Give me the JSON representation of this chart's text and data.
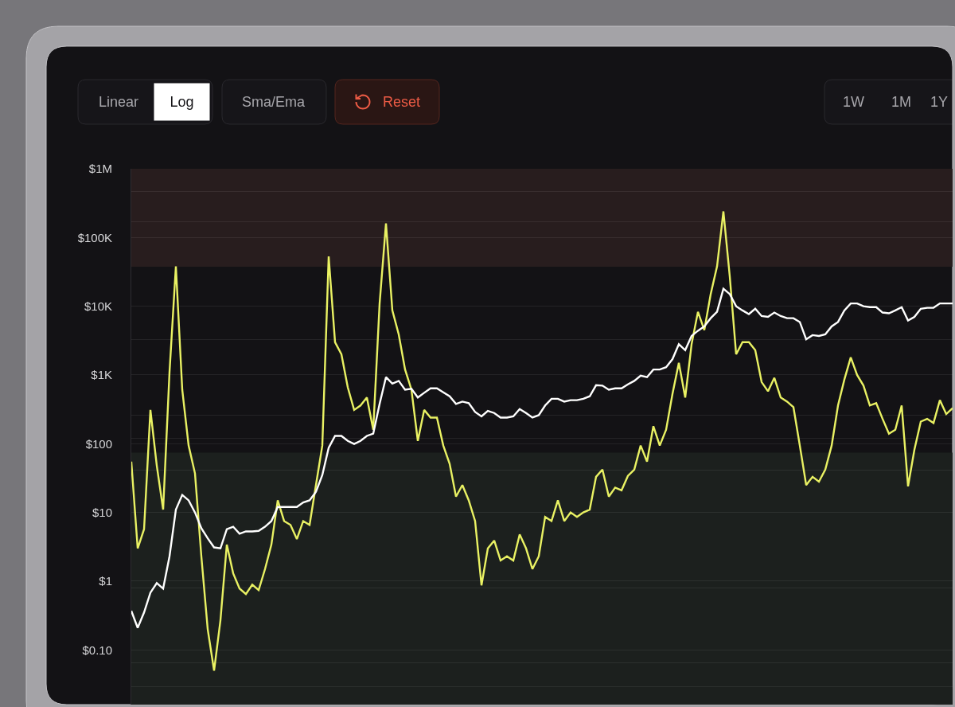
{
  "chart_data": {
    "type": "line",
    "annotations": [
      "Linear",
      "Log",
      "Sma/Ema",
      "Reset",
      "1W",
      "1M",
      "1Y"
    ],
    "categories": [
      null,
      null,
      null,
      null,
      null,
      null,
      null,
      null,
      null,
      null,
      null,
      null,
      null,
      null,
      null,
      null,
      null,
      null,
      null,
      null,
      null,
      null,
      null,
      null,
      null,
      null,
      null,
      null,
      null,
      null,
      null,
      null,
      null,
      null,
      null,
      null,
      null,
      null,
      null,
      null,
      null,
      null,
      null,
      null,
      null,
      null,
      null,
      null,
      null,
      null,
      null,
      null,
      null,
      null,
      null,
      null,
      null,
      null,
      null,
      null,
      null,
      null,
      null,
      null,
      null,
      null,
      null,
      null,
      null,
      null,
      null,
      null,
      null,
      null,
      null,
      null,
      null,
      null,
      null,
      null,
      null,
      null,
      null,
      null,
      null,
      null,
      null,
      null,
      null,
      null,
      null,
      null,
      null,
      null,
      null,
      null,
      null,
      null,
      null,
      null,
      null,
      null,
      null,
      null,
      null,
      null,
      null,
      null,
      null,
      null,
      null,
      null,
      null,
      null,
      null,
      null,
      null,
      null,
      null,
      null,
      null,
      null,
      null,
      null,
      null,
      null,
      null,
      null,
      null,
      null
    ],
    "series": [
      {
        "color": "#e9f163",
        "values": [
          55,
          3.0,
          5.7,
          310,
          48,
          11,
          1100,
          38000,
          610,
          94,
          37,
          2.3,
          0.2,
          0.05,
          0.27,
          3.4,
          1.3,
          0.78,
          0.65,
          0.89,
          0.74,
          1.5,
          3.4,
          15,
          7.5,
          6.6,
          4.1,
          7.5,
          6.6,
          25,
          94,
          53000,
          3000,
          2000,
          660,
          310,
          360,
          470,
          160,
          11000,
          160000,
          8700,
          3900,
          1200,
          610,
          110,
          310,
          240,
          240,
          94,
          51,
          17,
          25,
          15,
          7.5,
          0.87,
          3.0,
          3.9,
          2.0,
          2.3,
          2.0,
          4.8,
          3.0,
          1.5,
          2.3,
          8.6,
          7.5,
          15,
          7.5,
          10,
          8.6,
          10,
          11,
          33,
          42,
          17,
          23,
          21,
          34,
          42,
          94,
          55,
          180,
          94,
          160,
          530,
          1500,
          470,
          2800,
          8300,
          4500,
          15000,
          38000,
          240000,
          27000,
          2000,
          3000,
          3000,
          2300,
          790,
          580,
          910,
          470,
          410,
          340,
          94,
          25,
          33,
          28,
          42,
          94,
          360,
          860,
          1800,
          1000,
          700,
          360,
          390,
          230,
          140,
          160,
          360,
          24,
          82,
          210,
          230,
          200,
          430,
          270,
          330
        ]
      },
      {
        "color": "#ffffff",
        "values": [
          0.37,
          0.21,
          0.35,
          0.68,
          0.94,
          0.78,
          2.3,
          11,
          18,
          15,
          10,
          5.9,
          4.2,
          3.1,
          3.0,
          5.7,
          6.2,
          4.9,
          5.3,
          5.3,
          5.4,
          6.2,
          7.5,
          12,
          12,
          12,
          12,
          14,
          15,
          20,
          35,
          87,
          130,
          130,
          110,
          99,
          110,
          130,
          140,
          380,
          930,
          750,
          820,
          610,
          630,
          470,
          550,
          640,
          640,
          560,
          490,
          380,
          410,
          390,
          290,
          250,
          300,
          280,
          240,
          240,
          250,
          320,
          280,
          240,
          260,
          360,
          450,
          450,
          410,
          430,
          430,
          450,
          490,
          710,
          700,
          610,
          640,
          640,
          730,
          820,
          980,
          930,
          1200,
          1200,
          1300,
          1700,
          2800,
          2300,
          3700,
          4400,
          5100,
          6700,
          8300,
          18000,
          15000,
          10000,
          8700,
          7700,
          9200,
          7200,
          7000,
          8100,
          7200,
          6700,
          6700,
          5900,
          3300,
          3800,
          3700,
          3900,
          5100,
          5900,
          8700,
          11000,
          11000,
          10000,
          9700,
          9700,
          8100,
          7900,
          8700,
          9700,
          6200,
          7000,
          9200,
          9500,
          9500,
          11000,
          11000,
          11000
        ]
      }
    ],
    "log": true,
    "ylim": [
      0.016,
      1000000
    ],
    "yticks": [
      {
        "value": 1000000,
        "label": "$1M"
      },
      {
        "value": 470000,
        "label": null
      },
      {
        "value": 170000,
        "label": null
      },
      {
        "value": 100000,
        "label": "$100K"
      },
      {
        "value": 10000,
        "label": "$10K"
      },
      {
        "value": 3300,
        "label": null
      },
      {
        "value": 1000,
        "label": "$1K"
      },
      {
        "value": 260,
        "label": null
      },
      {
        "value": 120,
        "label": null
      },
      {
        "value": 100,
        "label": "$100"
      },
      {
        "value": 41,
        "label": null
      },
      {
        "value": 10,
        "label": "$10"
      },
      {
        "value": 1,
        "label": "$1"
      },
      {
        "value": 0.8,
        "label": null
      },
      {
        "value": 0.1,
        "label": "$0.10"
      },
      {
        "value": 0.065,
        "label": null
      },
      {
        "value": 0.029,
        "label": null
      }
    ],
    "grid": "y",
    "tick_labels": "y",
    "bands": [
      {
        "axis": "y",
        "from": 37700,
        "to": 1000000,
        "color": "#281d1e"
      },
      {
        "axis": "y",
        "from": 0.016,
        "to": 74,
        "color": "#1c201e"
      }
    ]
  }
}
